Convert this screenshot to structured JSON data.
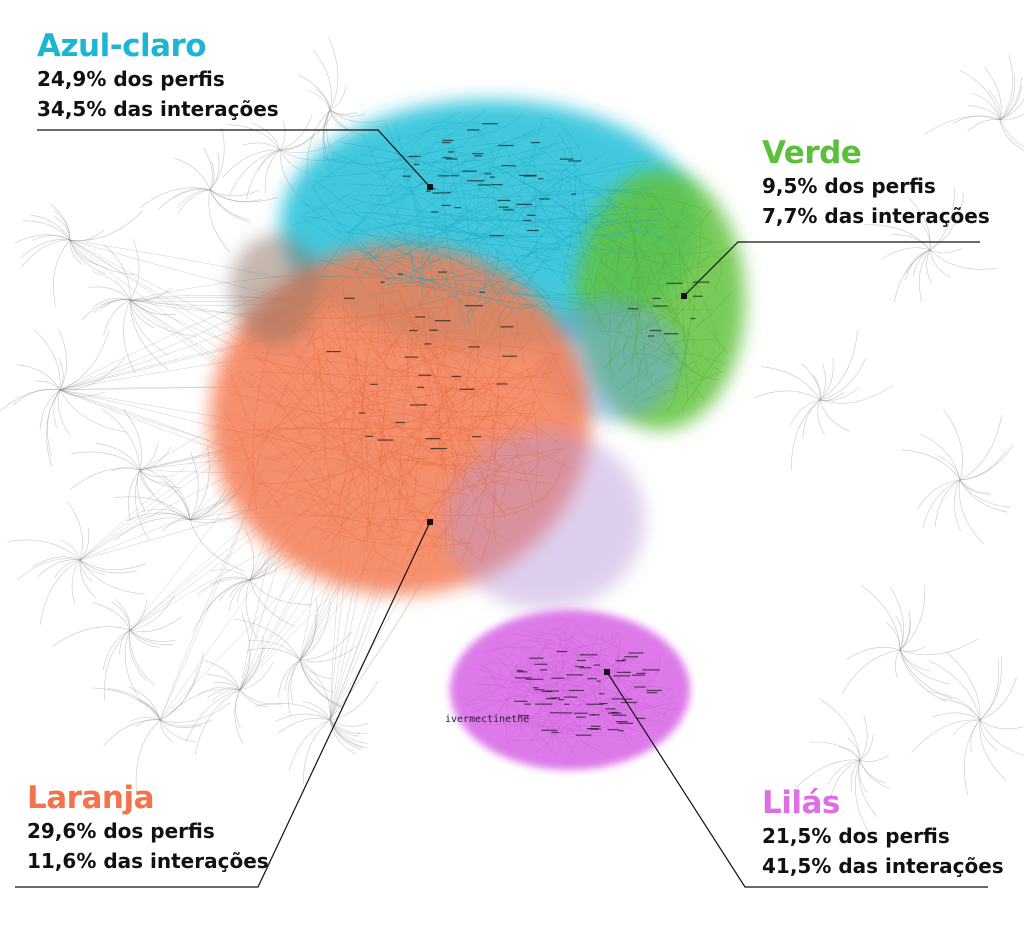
{
  "clusters": [
    {
      "name": "Azul-claro",
      "profiles": "24,9% dos perfis",
      "interactions": "34,5% das interações",
      "color": "#20bcd6"
    },
    {
      "name": "Verde",
      "profiles": "9,5% dos perfis",
      "interactions": "7,7% das interações",
      "color": "#5cbf3c"
    },
    {
      "name": "Laranja",
      "profiles": "29,6% dos perfis",
      "interactions": "11,6% das interações",
      "color": "#f47a4e"
    },
    {
      "name": "Lilás",
      "profiles": "21,5% dos perfis",
      "interactions": "41,5% das interações",
      "color": "#db6fe6"
    }
  ],
  "node_labels": {
    "ivermectin": "ivermectinethe"
  }
}
